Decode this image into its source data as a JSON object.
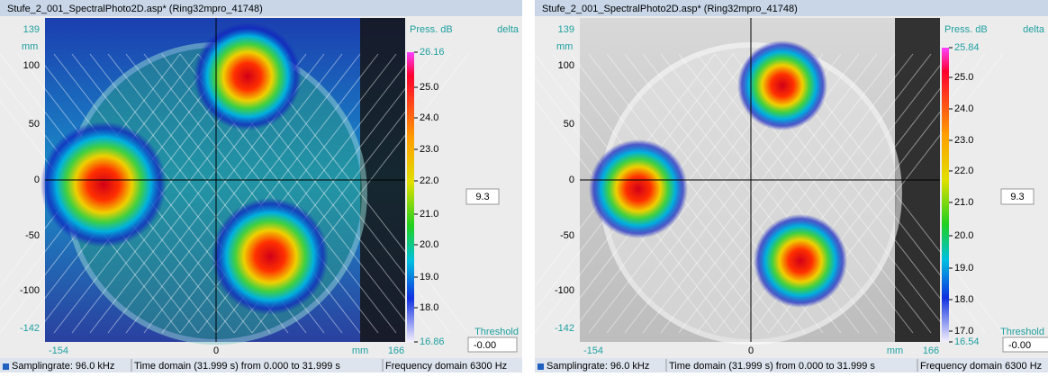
{
  "panels": [
    {
      "title": "Stufe_2_001_SpectralPhoto2D.asp* (Ring32mpro_41748)",
      "y_axis": {
        "unit": "mm",
        "ticks": [
          "139",
          "100",
          "50",
          "0",
          "-50",
          "-100",
          "-142"
        ]
      },
      "x_axis": {
        "unit": "mm",
        "ticks": [
          "-154",
          "0",
          "166"
        ]
      },
      "colorbar": {
        "title": "Press. dB",
        "delta": "delta",
        "ticks": [
          "26.16",
          "25.0",
          "24.0",
          "23.0",
          "22.0",
          "21.0",
          "20.0",
          "19.0",
          "18.0",
          "16.86"
        ]
      },
      "value_box": "9.3",
      "threshold": {
        "label": "Threshold",
        "value": "-0.00"
      },
      "status": {
        "sampling": "Samplingrate: 96.0 kHz",
        "time": "Time domain (31.999 s) from 0.000 to 31.999 s",
        "frequency": "Frequency domain 6300 Hz"
      }
    },
    {
      "title": "Stufe_2_001_SpectralPhoto2D.asp* (Ring32mpro_41748)",
      "y_axis": {
        "unit": "mm",
        "ticks": [
          "139",
          "100",
          "50",
          "0",
          "-50",
          "-100",
          "-142"
        ]
      },
      "x_axis": {
        "unit": "mm",
        "ticks": [
          "-154",
          "0",
          "166"
        ]
      },
      "colorbar": {
        "title": "Press. dB",
        "delta": "delta",
        "ticks": [
          "25.84",
          "25.0",
          "24.0",
          "23.0",
          "22.0",
          "21.0",
          "20.0",
          "19.0",
          "18.0",
          "17.0",
          "16.54"
        ]
      },
      "value_box": "9.3",
      "threshold": {
        "label": "Threshold",
        "value": "-0.00"
      },
      "status": {
        "sampling": "Samplingrate: 96.0 kHz",
        "time": "Time domain (31.999 s) from 0.000 to 31.999 s",
        "frequency": "Frequency domain 6300 Hz"
      }
    }
  ]
}
